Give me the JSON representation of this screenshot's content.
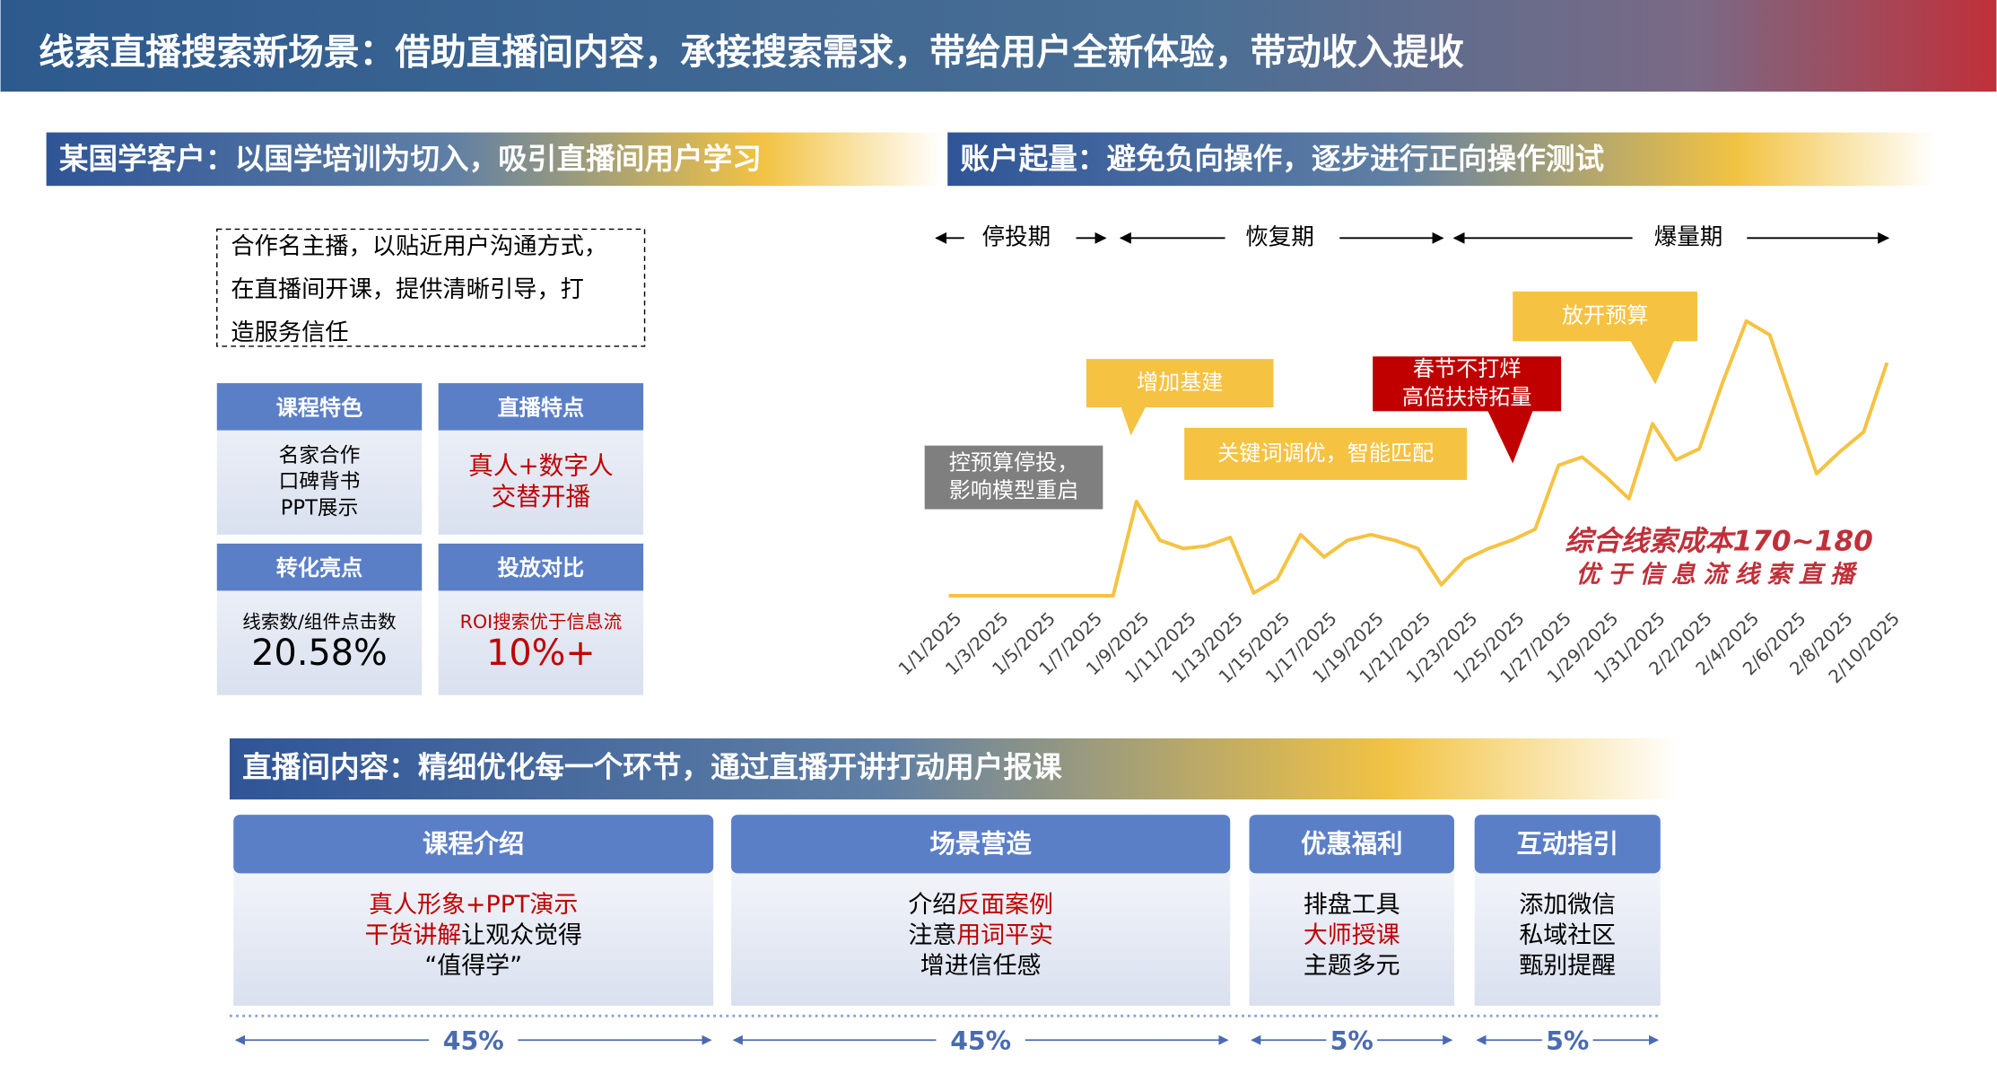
{
  "header": {
    "title": "线索直播搜索新场景：借助直播间内容，承接搜索需求，带给用户全新体验，带动收入提收"
  },
  "left_panel": {
    "title": "某国学客户：以国学培训为切入，吸引直播间用户学习",
    "note": [
      "合作名主播，以贴近用户沟通方式，",
      "在直播间开课，提供清晰引导，打",
      "造服务信任"
    ],
    "cards": [
      {
        "title": "课程特色",
        "lines": [
          "名家合作",
          "口碑背书",
          "PPT展示"
        ]
      },
      {
        "title": "直播特点",
        "lines": [
          "真人+数字人",
          "交替开播"
        ],
        "color": "#c00000"
      },
      {
        "title": "转化亮点",
        "caption": "线索数/组件点击数",
        "figure": "20.58%"
      },
      {
        "title": "投放对比",
        "caption": "ROI搜索优于信息流",
        "figure": "10%+",
        "color": "#c00000"
      }
    ]
  },
  "right_panel": {
    "title": "账户起量：避免负向操作，逐步进行正向操作测试",
    "phases": [
      "停投期",
      "恢复期",
      "爆量期"
    ]
  },
  "chart_data": {
    "type": "line",
    "color": "#f5c242",
    "categories": [
      "1/1/2025",
      null,
      "1/3/2025",
      null,
      "1/5/2025",
      null,
      "1/7/2025",
      null,
      "1/9/2025",
      null,
      "1/11/2025",
      null,
      "1/13/2025",
      null,
      "1/15/2025",
      null,
      "1/17/2025",
      null,
      "1/19/2025",
      null,
      "1/21/2025",
      null,
      "1/23/2025",
      null,
      "1/25/2025",
      null,
      "1/27/2025",
      null,
      "1/29/2025",
      null,
      "1/31/2025",
      null,
      "2/2/2025",
      null,
      "2/4/2025",
      null,
      "2/6/2025",
      null,
      "2/8/2025",
      null,
      "2/10/2025"
    ],
    "values": [
      0,
      0,
      0,
      0,
      0,
      0,
      0,
      0,
      34,
      20,
      17,
      18,
      21,
      1,
      6,
      22,
      14,
      20,
      22,
      20,
      17,
      4,
      13,
      17,
      20,
      24,
      47,
      50,
      43,
      35,
      62,
      49,
      53,
      77,
      99,
      94,
      69,
      44,
      52,
      59,
      84
    ],
    "ylim": [
      0,
      100
    ],
    "callouts": [
      {
        "lines": [
          "控预算停投，",
          "影响模型重启"
        ],
        "color": "#7f7f7f"
      },
      {
        "lines": [
          "增加基建"
        ],
        "color": "#f5c242"
      },
      {
        "lines": [
          "关键词调优，智能匹配"
        ],
        "color": "#f5c242"
      },
      {
        "lines": [
          "春节不打烊",
          "高倍扶持拓量"
        ],
        "color": "#c00000"
      },
      {
        "lines": [
          "放开预算"
        ],
        "color": "#f5c242"
      }
    ],
    "annotation": [
      "综合线索成本170~180",
      "优于信息流线索直播"
    ]
  },
  "bottom_panel": {
    "title": "直播间内容：精细优化每一个环节，通过直播开讲打动用户报课",
    "columns": [
      {
        "title": "课程介绍",
        "share": "45%",
        "lines": [
          [
            {
              "text": "真人形象+PPT演示",
              "color": "#c00000"
            }
          ],
          [
            {
              "text": "干货讲解",
              "color": "#c00000"
            },
            {
              "text": "让观众觉得"
            }
          ],
          [
            {
              "text": "“值得学”"
            }
          ]
        ]
      },
      {
        "title": "场景营造",
        "share": "45%",
        "lines": [
          [
            {
              "text": "介绍"
            },
            {
              "text": "反面案例",
              "color": "#c00000"
            }
          ],
          [
            {
              "text": "注意"
            },
            {
              "text": "用词平实",
              "color": "#c00000"
            }
          ],
          [
            {
              "text": "增进信任感"
            }
          ]
        ]
      },
      {
        "title": "优惠福利",
        "share": "5%",
        "lines": [
          [
            {
              "text": "排盘工具"
            }
          ],
          [
            {
              "text": "大师授课",
              "color": "#c00000"
            }
          ],
          [
            {
              "text": "主题多元"
            }
          ]
        ]
      },
      {
        "title": "互动指引",
        "share": "5%",
        "lines": [
          [
            {
              "text": "添加微信"
            }
          ],
          [
            {
              "text": "私域社区"
            }
          ],
          [
            {
              "text": "甄别提醒"
            }
          ]
        ]
      }
    ]
  }
}
